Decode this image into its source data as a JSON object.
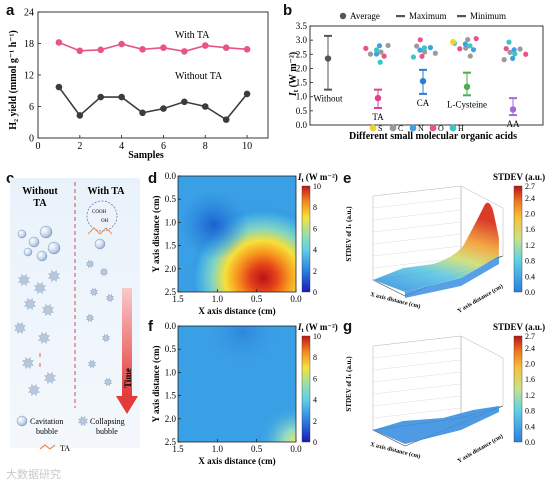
{
  "labels": {
    "a": "a",
    "b": "b",
    "c": "c",
    "d": "d",
    "e": "e",
    "f": "f",
    "g": "g"
  },
  "panel_a": {
    "ylabel": "H₂ yield (mmol g⁻¹ h⁻¹)",
    "xlabel": "Samples",
    "series": [
      {
        "name": "With TA",
        "color": "#e8538a",
        "values": [
          18.2,
          16.6,
          16.8,
          17.9,
          16.9,
          17.2,
          16.5,
          17.6,
          17.2,
          16.9
        ]
      },
      {
        "name": "Without TA",
        "color": "#3c3c3c",
        "values": [
          9.7,
          4.3,
          7.8,
          7.8,
          4.8,
          5.6,
          6.9,
          6.0,
          3.5,
          8.4
        ]
      }
    ],
    "x": [
      1,
      2,
      3,
      4,
      5,
      6,
      7,
      8,
      9,
      10
    ],
    "ylim": [
      0,
      24
    ],
    "yticks": [
      "0",
      "6",
      "12",
      "18",
      "24"
    ],
    "xticks": [
      "0",
      "2",
      "4",
      "6",
      "8",
      "10"
    ]
  },
  "panel_b": {
    "ylabel": "I",
    "ylabel_sub": "t",
    "ylabel_unit": " (W m⁻²)",
    "legend": {
      "average": "Average",
      "maximum": "Maximum",
      "minimum": "Minimum"
    },
    "categories": [
      "Without",
      "TA",
      "CA",
      "L-Cysteine",
      "AA"
    ],
    "category_colors": [
      "#555555",
      "#e23d8e",
      "#2c7cd6",
      "#4cae4f",
      "#a76bd4"
    ],
    "average": [
      2.35,
      0.95,
      1.55,
      1.35,
      0.55
    ],
    "maximum": [
      3.15,
      1.25,
      1.95,
      1.85,
      0.95
    ],
    "minimum": [
      1.25,
      0.6,
      1.1,
      1.05,
      0.35
    ],
    "ylim": [
      0.0,
      3.5
    ],
    "yticks": [
      "0.0",
      "0.5",
      "1.0",
      "1.5",
      "2.0",
      "2.5",
      "3.0",
      "3.5"
    ],
    "xlabel": "Different  small molecular organic acids",
    "atom_legend": [
      {
        "symbol": "S",
        "color": "#f2d12a"
      },
      {
        "symbol": "C",
        "color": "#9a9a9a"
      },
      {
        "symbol": "N",
        "color": "#3fa0e0"
      },
      {
        "symbol": "O",
        "color": "#e8538a"
      },
      {
        "symbol": "H",
        "color": "#39c6c6"
      }
    ]
  },
  "panel_c": {
    "without": "Without",
    "without2": "TA",
    "with": "With TA",
    "cooh": "COOH",
    "oh": "OH",
    "time": "Time",
    "legend": [
      {
        "label1": "Cavitation",
        "label2": "bubble"
      },
      {
        "label1": "Collapsing",
        "label2": "bubble"
      },
      {
        "label1": "TA",
        "label2": ""
      }
    ]
  },
  "heatmap_common": {
    "xlabel": "X axis distance (cm)",
    "ylabel": "Y axis distance (cm)",
    "xticks": [
      "1.5",
      "1.0",
      "0.5",
      "0.0"
    ],
    "yticks": [
      "0.0",
      "0.5",
      "1.0",
      "1.5",
      "2.0",
      "2.5"
    ],
    "cbar_title": "I",
    "cbar_sub": "t",
    "cbar_unit": " (W m⁻²)",
    "cbar_ticks": [
      "0",
      "2",
      "4",
      "6",
      "8",
      "10"
    ]
  },
  "surface_common": {
    "cbar_title": "STDEV (a.u.)",
    "cbar_ticks": [
      "0.0",
      "0.4",
      "0.8",
      "1.2",
      "1.6",
      "2.0",
      "2.4",
      "2.7"
    ],
    "zlabel": "STDEV of Iₜ (a.u.)",
    "xlabel": "X axis distance (cm)",
    "ylabel": "Y axis distance (cm)"
  },
  "watermark": "大数据研究"
}
